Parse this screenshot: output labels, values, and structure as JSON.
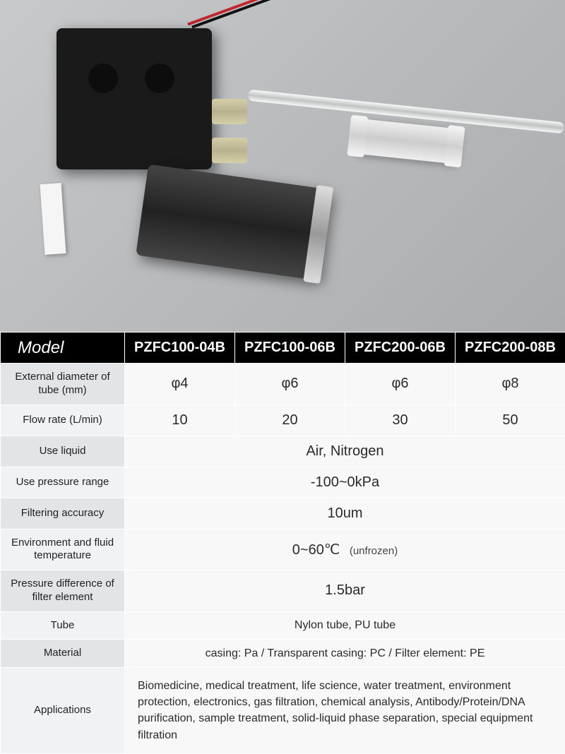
{
  "table": {
    "header_label": "Model",
    "models": [
      "PZFC100-04B",
      "PZFC100-06B",
      "PZFC200-06B",
      "PZFC200-08B"
    ],
    "rows": {
      "ext_diameter": {
        "label": "External diameter of tube (mm)",
        "values": [
          "φ4",
          "φ6",
          "φ6",
          "φ8"
        ]
      },
      "flow_rate": {
        "label": "Flow rate (L/min)",
        "values": [
          "10",
          "20",
          "30",
          "50"
        ]
      },
      "use_liquid": {
        "label": "Use liquid",
        "value": "Air, Nitrogen"
      },
      "pressure_range": {
        "label": "Use pressure range",
        "value": "-100~0kPa"
      },
      "filtering_accuracy": {
        "label": "Filtering accuracy",
        "value": "10um"
      },
      "env_temp": {
        "label": "Environment and fluid temperature",
        "value": "0~60℃",
        "note": "(unfrozen)"
      },
      "pressure_diff": {
        "label": "Pressure difference of filter element",
        "value": "1.5bar"
      },
      "tube": {
        "label": "Tube",
        "value": "Nylon tube, PU tube"
      },
      "material": {
        "label": "Material",
        "value": "casing: Pa / Transparent casing: PC / Filter element: PE"
      },
      "applications": {
        "label": "Applications",
        "value": "Biomedicine, medical treatment, life science, water treatment, environment protection, electronics, gas filtration, chemical analysis, Antibody/Protein/DNA purification, sample treatment, solid-liquid phase separation, special equipment filtration"
      }
    }
  },
  "colors": {
    "header_bg": "#000000",
    "header_fg": "#ffffff",
    "row_label_bg": "#e3e4e6",
    "row_label_bg_alt": "#f1f2f3",
    "cell_bg": "#f8f8f8",
    "border": "#ffffff",
    "text": "#2a2a2a"
  }
}
